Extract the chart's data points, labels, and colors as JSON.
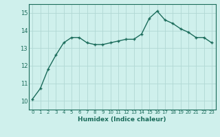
{
  "x": [
    0,
    1,
    2,
    3,
    4,
    5,
    6,
    7,
    8,
    9,
    10,
    11,
    12,
    13,
    14,
    15,
    16,
    17,
    18,
    19,
    20,
    21,
    22,
    23
  ],
  "y": [
    10.1,
    10.7,
    11.8,
    12.6,
    13.3,
    13.6,
    13.6,
    13.3,
    13.2,
    13.2,
    13.3,
    13.4,
    13.5,
    13.5,
    13.8,
    14.7,
    15.1,
    14.6,
    14.4,
    14.1,
    13.9,
    13.6,
    13.6,
    13.3
  ],
  "xlabel": "Humidex (Indice chaleur)",
  "ylim": [
    9.5,
    15.5
  ],
  "xlim": [
    -0.5,
    23.5
  ],
  "yticks": [
    10,
    11,
    12,
    13,
    14,
    15
  ],
  "xticks": [
    0,
    1,
    2,
    3,
    4,
    5,
    6,
    7,
    8,
    9,
    10,
    11,
    12,
    13,
    14,
    15,
    16,
    17,
    18,
    19,
    20,
    21,
    22,
    23
  ],
  "line_color": "#1a6b5a",
  "marker_color": "#1a6b5a",
  "bg_color": "#cff0ec",
  "grid_color": "#b0d8d4",
  "text_color": "#1a6b5a"
}
